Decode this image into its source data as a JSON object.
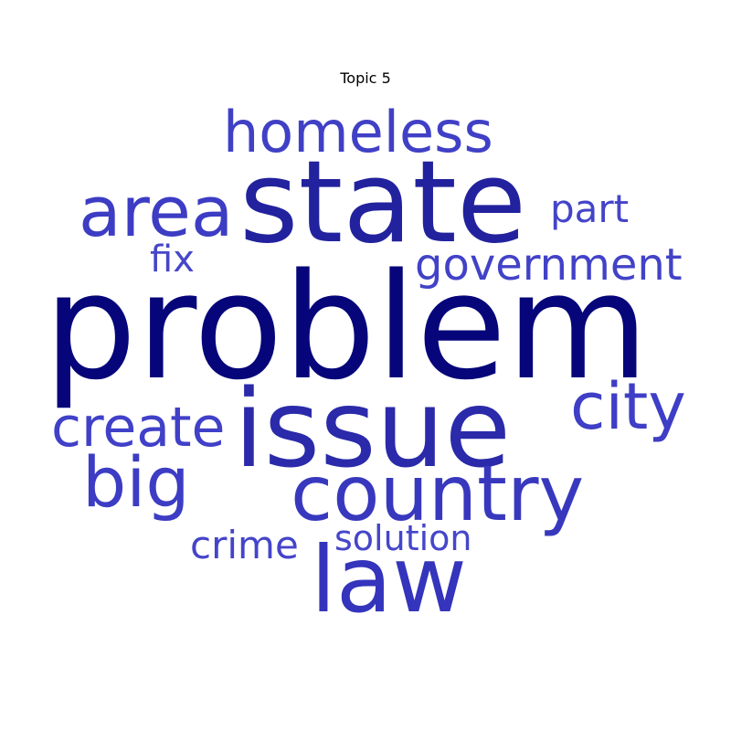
{
  "chart_data": {
    "type": "wordcloud",
    "title": "Topic 5",
    "words": [
      {
        "text": "problem",
        "weight": 1.0,
        "color": "#06067a"
      },
      {
        "text": "state",
        "weight": 0.78,
        "color": "#22229e"
      },
      {
        "text": "issue",
        "weight": 0.74,
        "color": "#2a2aaa"
      },
      {
        "text": "law",
        "weight": 0.62,
        "color": "#3434bc"
      },
      {
        "text": "country",
        "weight": 0.53,
        "color": "#3838be"
      },
      {
        "text": "area",
        "weight": 0.48,
        "color": "#3c3cc4"
      },
      {
        "text": "big",
        "weight": 0.47,
        "color": "#3c3cc4"
      },
      {
        "text": "city",
        "weight": 0.44,
        "color": "#3e3ec6"
      },
      {
        "text": "homeless",
        "weight": 0.39,
        "color": "#4040c6"
      },
      {
        "text": "create",
        "weight": 0.37,
        "color": "#4040c8"
      },
      {
        "text": "government",
        "weight": 0.3,
        "color": "#4242c8"
      },
      {
        "text": "part",
        "weight": 0.26,
        "color": "#4444ca"
      },
      {
        "text": "crime",
        "weight": 0.26,
        "color": "#4444ca"
      },
      {
        "text": "fix",
        "weight": 0.25,
        "color": "#4646ca"
      },
      {
        "text": "solution",
        "weight": 0.24,
        "color": "#4646ca"
      }
    ]
  }
}
